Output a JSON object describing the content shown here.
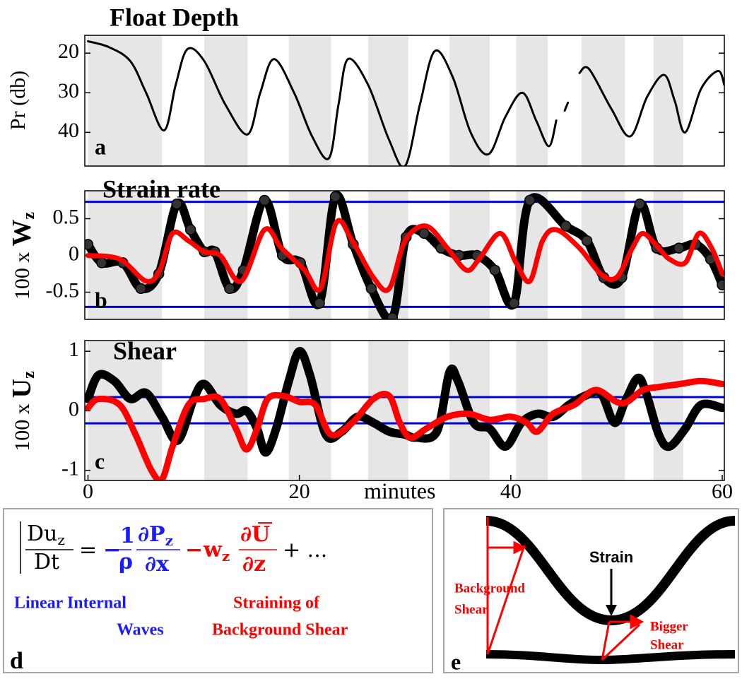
{
  "shaded_intervals": [
    [
      0,
      7
    ],
    [
      11,
      15.1
    ],
    [
      19,
      23
    ],
    [
      26.5,
      30.3
    ],
    [
      34.2,
      38
    ],
    [
      40.5,
      43.5
    ],
    [
      46.7,
      50.8
    ],
    [
      53.5,
      56.3
    ]
  ],
  "shading_color": "#e6e6e6",
  "chart_data": [
    {
      "type": "line",
      "title": "Float Depth",
      "y_label": "Pr (db)",
      "panel_label": "a",
      "xlim": [
        -0.3,
        60.2
      ],
      "ylim": [
        15.5,
        48.5
      ],
      "y_inverted": true,
      "yticks": [
        20,
        30,
        40
      ],
      "series": [
        {
          "color": "#000000",
          "x": [
            0,
            2,
            4,
            5.5,
            7.2,
            8.3,
            9.4,
            11,
            13,
            15.1,
            16.3,
            17.6,
            19.5,
            21.2,
            22.8,
            23.7,
            24.6,
            26.5,
            28.5,
            30,
            31.4,
            32.8,
            34.5,
            36.2,
            37.9,
            39.5,
            41.1,
            42.4,
            43.6,
            44.3,
            44.8,
            45.1,
            45.4,
            45.9,
            46.5,
            47.4,
            49.5,
            51.3,
            52.9,
            54.5,
            55.5,
            56.5,
            58,
            59.6,
            60.2
          ],
          "values": [
            17,
            18.5,
            22,
            30,
            39.5,
            28,
            19,
            22,
            33,
            40.5,
            30,
            21.5,
            30,
            41,
            46.5,
            33,
            21.5,
            28,
            42,
            48.5,
            33,
            19.5,
            26,
            40,
            45.5,
            36,
            30,
            37,
            43.5,
            37,
            null,
            34.5,
            32.5,
            null,
            25,
            24,
            34,
            41,
            31,
            25.5,
            32,
            40,
            29,
            24.5,
            28
          ]
        }
      ]
    },
    {
      "type": "line",
      "title": "Strain rate",
      "y_label": "100 x",
      "y_label_symbol": "W",
      "y_label_subscript": "z",
      "panel_label": "b",
      "xlim": [
        -0.3,
        60.2
      ],
      "ylim": [
        -0.87,
        0.88
      ],
      "yticks": [
        -0.5,
        0,
        0.5
      ],
      "reference_lines": {
        "color": "#0000dd",
        "values": [
          0.73,
          -0.7
        ]
      },
      "series": [
        {
          "color": "#000000",
          "markers": true,
          "x": [
            0,
            1.3,
            3.3,
            5,
            6.7,
            8.4,
            9.7,
            11,
            12,
            13.4,
            14.7,
            16.7,
            18.4,
            20.1,
            21.9,
            23.4,
            25.1,
            26.8,
            28.8,
            30.1,
            31.8,
            33.4,
            35.1,
            36.8,
            38.5,
            40.3,
            41.8,
            45.2,
            47.2,
            48.8,
            50.5,
            52.2,
            53.8,
            55.9,
            57.5,
            58.9,
            60
          ],
          "values": [
            0.15,
            -0.1,
            -0.1,
            -0.45,
            -0.25,
            0.7,
            0.35,
            0.05,
            0.05,
            -0.45,
            -0.2,
            0.75,
            0,
            -0.1,
            -0.65,
            0.8,
            0.15,
            -0.45,
            -0.85,
            0.25,
            0.3,
            0.1,
            0,
            0,
            -0.2,
            -0.65,
            0.75,
            0.4,
            0.2,
            -0.3,
            -0.3,
            0.7,
            0.1,
            0.1,
            0.15,
            -0.05,
            -0.4
          ]
        },
        {
          "color": "#ff0000",
          "x": [
            0,
            3,
            5.5,
            6.8,
            8,
            9.5,
            11,
            12.5,
            14.5,
            16.7,
            18.3,
            20.5,
            22,
            23.5,
            25,
            27,
            28.5,
            30,
            32,
            34,
            35.8,
            37,
            39,
            40.5,
            41.8,
            43,
            44.3,
            46.5,
            48.5,
            50,
            51.5,
            52.5,
            54,
            55,
            56.5,
            57.8,
            59,
            60
          ],
          "values": [
            0,
            -0.05,
            -0.35,
            -0.2,
            0.3,
            0.2,
            0.05,
            0,
            -0.35,
            0.35,
            0.1,
            -0.2,
            -0.45,
            0.45,
            0.2,
            -0.3,
            -0.45,
            0.2,
            0.4,
            0.1,
            -0.2,
            -0.05,
            0.3,
            -0.1,
            -0.35,
            0.2,
            0.35,
            0.1,
            -0.25,
            -0.3,
            0.1,
            0.3,
            0.1,
            -0.05,
            -0.1,
            0.3,
            0.1,
            -0.25
          ]
        }
      ]
    },
    {
      "type": "line",
      "title": "Shear",
      "y_label": "100 x",
      "y_label_symbol": "U",
      "y_label_subscript": "z",
      "panel_label": "c",
      "x_label": "minutes",
      "xlim": [
        -0.3,
        60.2
      ],
      "ylim": [
        -1.17,
        1.18
      ],
      "yticks": [
        -1,
        0,
        1
      ],
      "xticks": [
        0,
        20,
        40,
        60
      ],
      "reference_lines": {
        "color": "#0000dd",
        "values": [
          0.23,
          -0.21
        ]
      },
      "series": [
        {
          "color": "#000000",
          "x": [
            0,
            1,
            2.5,
            4,
            5.5,
            7,
            8.5,
            10,
            11,
            12.5,
            14,
            15,
            16,
            16.8,
            17.8,
            19,
            20,
            21,
            22.5,
            24,
            25.5,
            27,
            28.5,
            30,
            31,
            33,
            34.2,
            35,
            36.5,
            38,
            39.5,
            41,
            42.5,
            44,
            45.5,
            47,
            48.5,
            49.8,
            50.8,
            52,
            52.8,
            54,
            55,
            56.5,
            58,
            60
          ],
          "values": [
            0.2,
            0.6,
            0.5,
            0.2,
            0.3,
            -0.1,
            -0.5,
            0.2,
            0.45,
            0.1,
            -0.05,
            0,
            -0.3,
            -0.7,
            -0.3,
            0.5,
            1.0,
            0.6,
            -0.4,
            -0.35,
            -0.1,
            -0.2,
            -0.35,
            -0.4,
            -0.45,
            -0.35,
            0.65,
            0.5,
            -0.2,
            -0.3,
            -0.6,
            -0.2,
            -0.05,
            -0.1,
            0.1,
            0.25,
            0.3,
            -0.2,
            0.15,
            0.55,
            0.3,
            -0.4,
            -0.6,
            -0.3,
            0.1,
            0.05
          ]
        },
        {
          "color": "#ff0000",
          "x": [
            0,
            1,
            3,
            4.5,
            6,
            7,
            8,
            9.5,
            11,
            12.5,
            14,
            15,
            16,
            17,
            18.5,
            20,
            21.5,
            23,
            25,
            27,
            28.5,
            29.5,
            30.5,
            32,
            34,
            36,
            38,
            40,
            41.5,
            42.5,
            44,
            46,
            48,
            50,
            51,
            52.5,
            54,
            56,
            58,
            60
          ],
          "values": [
            0.05,
            0.2,
            0.1,
            -0.4,
            -1.0,
            -1.15,
            -0.6,
            0.1,
            0.2,
            0.2,
            -0.3,
            -0.65,
            -0.3,
            0.2,
            0.25,
            0.15,
            0.1,
            -0.4,
            -0.2,
            0.2,
            0.25,
            -0.2,
            -0.45,
            -0.3,
            -0.1,
            -0.05,
            -0.15,
            -0.1,
            -0.2,
            -0.35,
            -0.05,
            0.1,
            0.35,
            0.15,
            0.15,
            0.35,
            0.4,
            0.45,
            0.5,
            0.45
          ]
        }
      ]
    }
  ],
  "equation_panel": {
    "lhs_numerator": "Du",
    "lhs_subscript": "z",
    "lhs_denominator": "Dt",
    "equals": "=",
    "minus_1": "−",
    "frac1_numerator": "1",
    "frac1_denominator": "ρ",
    "frac2_numerator": "∂P",
    "frac2_subscript": "z",
    "frac2_denominator": "∂x",
    "minus_2": "−",
    "w": "w",
    "w_subscript": "z",
    "frac3_numerator": "∂U",
    "frac3_denominator": "∂z",
    "tail": "+ ...",
    "blue_caption": [
      "Linear Internal",
      "Waves"
    ],
    "red_caption": [
      "Straining of",
      "Background Shear"
    ],
    "panel_label": "d"
  },
  "diagram_panel": {
    "strain_label": "Strain",
    "background_shear_label": [
      "Background",
      "Shear"
    ],
    "bigger_shear_label": [
      "Bigger",
      "Shear"
    ],
    "panel_label": "e"
  }
}
